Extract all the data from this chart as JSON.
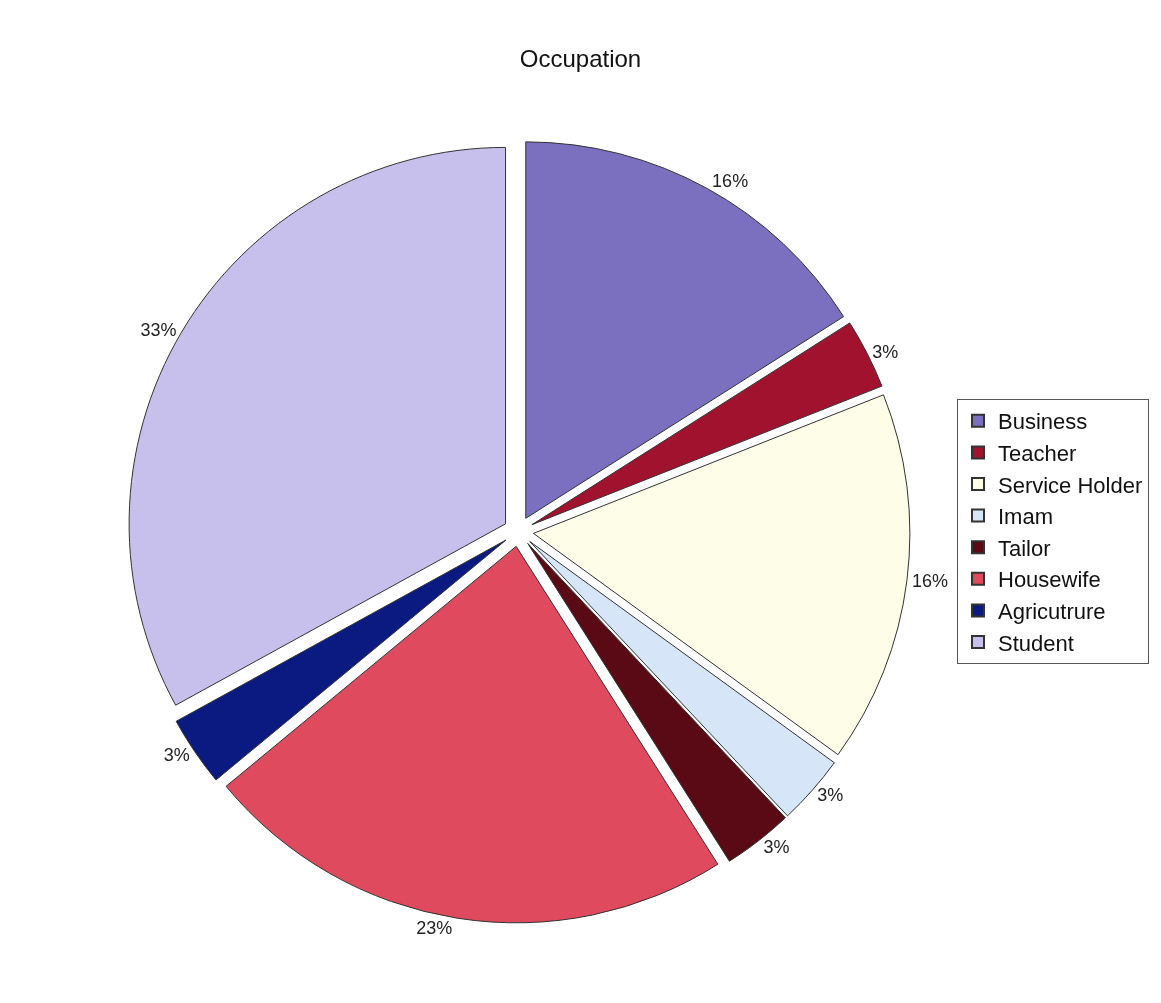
{
  "chart_data": {
    "type": "pie",
    "title": "Occupation",
    "categories": [
      "Business",
      "Teacher",
      "Service Holder",
      "Imam",
      "Tailor",
      "Housewife",
      "Agricutrure",
      "Student"
    ],
    "values": [
      16,
      3,
      16,
      3,
      3,
      23,
      3,
      33
    ],
    "value_labels": [
      "16%",
      "3%",
      "16%",
      "3%",
      "3%",
      "23%",
      "3%",
      "33%"
    ],
    "colors": [
      "#7b6fc0",
      "#a0122e",
      "#fdfde8",
      "#d6e6f8",
      "#5a0a14",
      "#e04a5e",
      "#0a1a80",
      "#c8c0ec"
    ],
    "legend": "right"
  }
}
